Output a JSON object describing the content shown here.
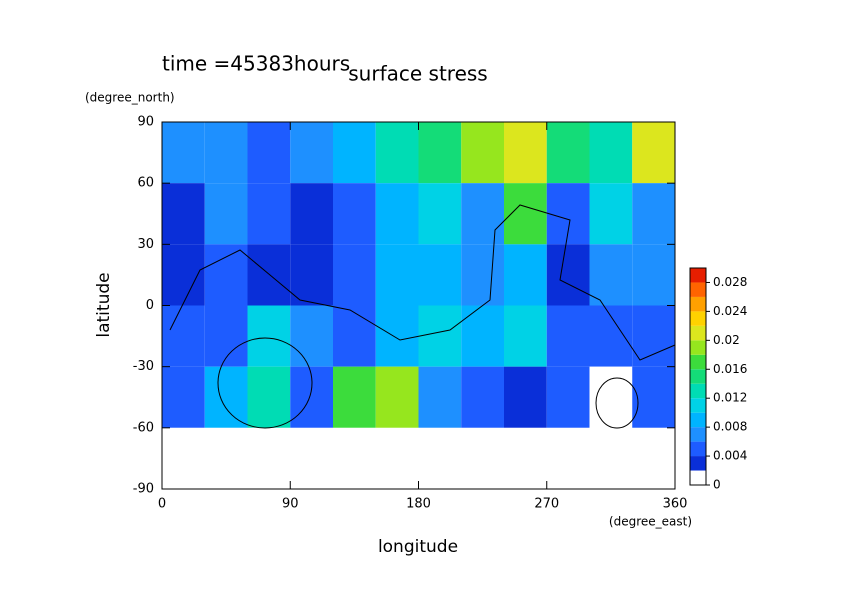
{
  "chart_data": {
    "type": "contour",
    "title": "surface stress",
    "subtitle": "time =45383hours",
    "x_label": "longitude",
    "x_units": "(degree_east)",
    "y_label": "latitude",
    "y_units": "(degree_north)",
    "xlim": [
      0,
      360
    ],
    "xticks": [
      0,
      90,
      180,
      270,
      360
    ],
    "ylim": [
      -90,
      90
    ],
    "yticks": [
      -90,
      -60,
      -30,
      0,
      30,
      60,
      90
    ],
    "x": [
      15,
      45,
      75,
      105,
      135,
      165,
      195,
      225,
      255,
      285,
      315,
      345
    ],
    "y": [
      75,
      45,
      15,
      -15,
      -45,
      -75
    ],
    "z": [
      [
        0.006,
        0.006,
        0.005,
        0.006,
        0.008,
        0.012,
        0.014,
        0.018,
        0.02,
        0.014,
        0.012,
        0.02
      ],
      [
        0.003,
        0.006,
        0.004,
        0.002,
        0.004,
        0.008,
        0.01,
        0.006,
        0.016,
        0.004,
        0.01,
        0.006
      ],
      [
        0.003,
        0.004,
        0.002,
        0.003,
        0.004,
        0.008,
        0.008,
        0.006,
        0.008,
        0.003,
        0.006,
        0.006
      ],
      [
        0.004,
        0.004,
        0.01,
        0.006,
        0.004,
        0.008,
        0.01,
        0.008,
        0.01,
        0.004,
        0.004,
        0.004
      ],
      [
        0.004,
        0.008,
        0.012,
        0.004,
        0.016,
        0.018,
        0.006,
        0.004,
        0.003,
        0.004,
        0,
        0.004
      ],
      [
        0,
        0,
        0,
        0,
        0,
        0,
        0,
        0,
        0,
        0,
        0,
        0
      ]
    ],
    "levels": [
      0,
      0.002,
      0.004,
      0.006,
      0.008,
      0.01,
      0.012,
      0.014,
      0.016,
      0.018,
      0.02,
      0.022,
      0.024,
      0.026,
      0.028,
      0.03
    ],
    "colors": [
      "#ffffff",
      "#0a2fd8",
      "#1e5cff",
      "#1e90ff",
      "#00b4ff",
      "#00d2e6",
      "#00dcb4",
      "#14dc78",
      "#3cdc3c",
      "#96e61e",
      "#dce61e",
      "#ffd200",
      "#ffa000",
      "#ff6400",
      "#e61e00"
    ],
    "clim": [
      0,
      0.03
    ],
    "cticks": [
      0,
      0.004,
      0.008,
      0.012,
      0.016,
      0.02,
      0.024,
      0.028
    ]
  }
}
